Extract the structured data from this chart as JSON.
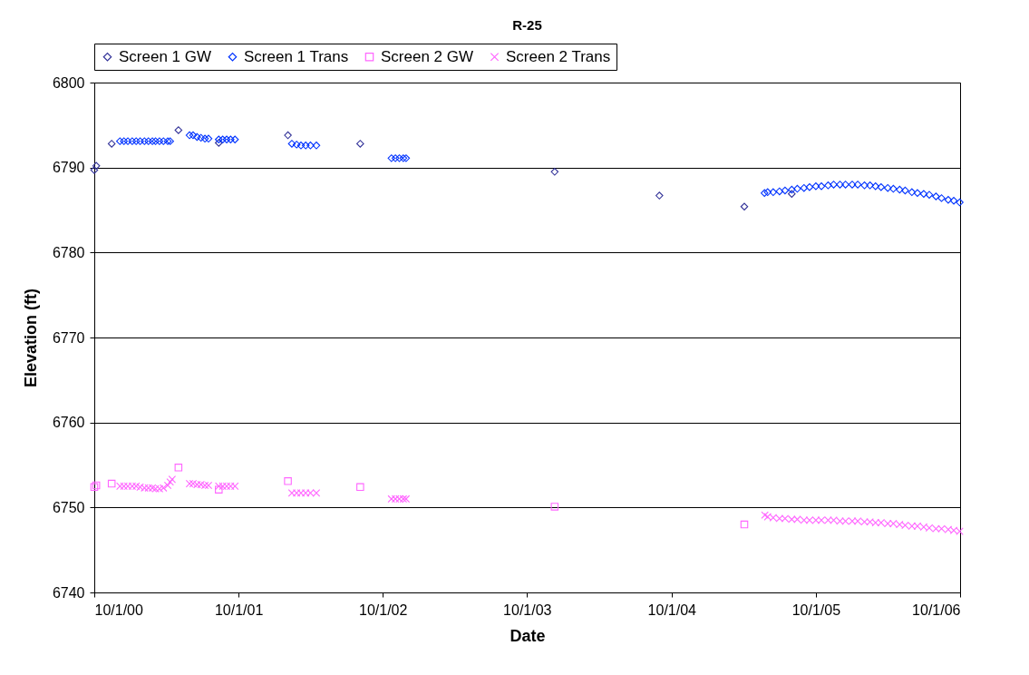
{
  "chart_data": {
    "type": "scatter",
    "title": "R-25",
    "xlabel": "Date",
    "ylabel": "Elevation (ft)",
    "xlim": [
      "2000-10-01",
      "2006-10-01"
    ],
    "xticks": [
      {
        "value": "2000-10-01",
        "label": "10/1/00"
      },
      {
        "value": "2001-10-01",
        "label": "10/1/01"
      },
      {
        "value": "2002-10-01",
        "label": "10/1/02"
      },
      {
        "value": "2003-10-01",
        "label": "10/1/03"
      },
      {
        "value": "2004-10-01",
        "label": "10/1/04"
      },
      {
        "value": "2005-10-01",
        "label": "10/1/05"
      },
      {
        "value": "2006-10-01",
        "label": "10/1/06"
      }
    ],
    "ylim": [
      6740,
      6800
    ],
    "yticks": [
      6740,
      6750,
      6760,
      6770,
      6780,
      6790,
      6800
    ],
    "grid": "y",
    "legend": "top",
    "series": [
      {
        "name": "Screen 1 GW",
        "color": "#333399",
        "marker": "diamond",
        "x": [
          "2000-10-01",
          "2000-10-06",
          "2000-11-14",
          "2001-05-02",
          "2001-08-12",
          "2002-02-03",
          "2002-08-05",
          "2003-12-10",
          "2004-08-31",
          "2005-04-03",
          "2005-08-01"
        ],
        "values": [
          6789.7,
          6790.2,
          6792.8,
          6794.4,
          6792.9,
          6793.8,
          6792.8,
          6789.5,
          6786.7,
          6785.4,
          6786.9
        ]
      },
      {
        "name": "Screen 1 Trans",
        "color": "#0033ff",
        "marker": "diamond",
        "x": [
          "2000-12-05",
          "2000-12-15",
          "2000-12-25",
          "2001-01-05",
          "2001-01-15",
          "2001-01-25",
          "2001-02-05",
          "2001-02-15",
          "2001-02-25",
          "2001-03-05",
          "2001-03-15",
          "2001-03-25",
          "2001-04-05",
          "2001-04-11",
          "2001-05-30",
          "2001-06-08",
          "2001-06-18",
          "2001-06-28",
          "2001-07-08",
          "2001-07-17",
          "2001-08-12",
          "2001-08-22",
          "2001-09-01",
          "2001-09-11",
          "2001-09-22",
          "2002-02-13",
          "2002-02-25",
          "2002-03-08",
          "2002-03-20",
          "2002-04-01",
          "2002-04-16",
          "2002-10-23",
          "2002-11-02",
          "2002-11-12",
          "2002-11-22",
          "2002-11-29",
          "2005-05-24",
          "2005-06-01",
          "2005-06-15",
          "2005-07-01",
          "2005-07-15",
          "2005-08-01",
          "2005-08-15",
          "2005-09-01",
          "2005-09-15",
          "2005-10-01",
          "2005-10-15",
          "2005-11-01",
          "2005-11-15",
          "2005-12-01",
          "2005-12-15",
          "2006-01-01",
          "2006-01-15",
          "2006-02-01",
          "2006-02-15",
          "2006-03-01",
          "2006-03-15",
          "2006-04-01",
          "2006-04-15",
          "2006-05-01",
          "2006-05-15",
          "2006-06-01",
          "2006-06-15",
          "2006-07-01",
          "2006-07-15",
          "2006-08-01",
          "2006-08-15",
          "2006-09-01",
          "2006-09-15",
          "2006-09-30"
        ],
        "values": [
          6793.1,
          6793.1,
          6793.1,
          6793.1,
          6793.1,
          6793.1,
          6793.1,
          6793.1,
          6793.1,
          6793.1,
          6793.1,
          6793.1,
          6793.1,
          6793.1,
          6793.8,
          6793.8,
          6793.6,
          6793.5,
          6793.4,
          6793.4,
          6793.3,
          6793.3,
          6793.3,
          6793.3,
          6793.3,
          6792.8,
          6792.7,
          6792.6,
          6792.6,
          6792.6,
          6792.6,
          6791.1,
          6791.1,
          6791.1,
          6791.1,
          6791.1,
          6787.0,
          6787.1,
          6787.1,
          6787.2,
          6787.3,
          6787.4,
          6787.5,
          6787.6,
          6787.7,
          6787.8,
          6787.8,
          6787.9,
          6788.0,
          6788.0,
          6788.0,
          6788.0,
          6788.0,
          6787.9,
          6787.9,
          6787.8,
          6787.7,
          6787.6,
          6787.5,
          6787.4,
          6787.3,
          6787.1,
          6787.0,
          6786.9,
          6786.8,
          6786.6,
          6786.4,
          6786.2,
          6786.1,
          6785.9
        ]
      },
      {
        "name": "Screen 2 GW",
        "color": "#ff66ff",
        "marker": "square",
        "x": [
          "2000-10-01",
          "2000-10-06",
          "2000-11-14",
          "2001-05-02",
          "2001-08-12",
          "2002-02-03",
          "2002-08-05",
          "2003-12-10",
          "2005-04-03"
        ],
        "values": [
          6752.4,
          6752.6,
          6752.8,
          6754.7,
          6752.1,
          6753.1,
          6752.4,
          6750.1,
          6748.0
        ]
      },
      {
        "name": "Screen 2 Trans",
        "color": "#ff66ff",
        "marker": "cross",
        "x": [
          "2000-12-05",
          "2000-12-15",
          "2000-12-25",
          "2001-01-05",
          "2001-01-15",
          "2001-01-25",
          "2001-02-05",
          "2001-02-15",
          "2001-02-25",
          "2001-03-05",
          "2001-03-15",
          "2001-03-25",
          "2001-04-05",
          "2001-04-11",
          "2001-04-16",
          "2001-05-30",
          "2001-06-08",
          "2001-06-18",
          "2001-06-28",
          "2001-07-08",
          "2001-07-17",
          "2001-08-12",
          "2001-08-22",
          "2001-09-01",
          "2001-09-11",
          "2001-09-22",
          "2002-02-13",
          "2002-02-25",
          "2002-03-08",
          "2002-03-20",
          "2002-04-01",
          "2002-04-16",
          "2002-10-23",
          "2002-11-02",
          "2002-11-12",
          "2002-11-22",
          "2002-11-29",
          "2005-05-25",
          "2005-06-01",
          "2005-06-15",
          "2005-07-01",
          "2005-07-15",
          "2005-08-01",
          "2005-08-15",
          "2005-09-01",
          "2005-09-15",
          "2005-10-01",
          "2005-10-15",
          "2005-11-01",
          "2005-11-15",
          "2005-12-01",
          "2005-12-15",
          "2006-01-01",
          "2006-01-15",
          "2006-02-01",
          "2006-02-15",
          "2006-03-01",
          "2006-03-15",
          "2006-04-01",
          "2006-04-15",
          "2006-05-01",
          "2006-05-15",
          "2006-06-01",
          "2006-06-15",
          "2006-07-01",
          "2006-07-15",
          "2006-08-01",
          "2006-08-15",
          "2006-09-01",
          "2006-09-15",
          "2006-09-30"
        ],
        "values": [
          6752.5,
          6752.5,
          6752.5,
          6752.5,
          6752.5,
          6752.4,
          6752.3,
          6752.3,
          6752.3,
          6752.2,
          6752.2,
          6752.3,
          6752.6,
          6753.0,
          6753.3,
          6752.8,
          6752.8,
          6752.7,
          6752.7,
          6752.6,
          6752.6,
          6752.5,
          6752.5,
          6752.5,
          6752.5,
          6752.5,
          6751.7,
          6751.7,
          6751.7,
          6751.7,
          6751.7,
          6751.7,
          6751.0,
          6751.0,
          6751.0,
          6751.0,
          6751.0,
          6749.1,
          6748.9,
          6748.8,
          6748.7,
          6748.7,
          6748.6,
          6748.6,
          6748.5,
          6748.5,
          6748.5,
          6748.5,
          6748.5,
          6748.5,
          6748.4,
          6748.4,
          6748.4,
          6748.4,
          6748.3,
          6748.3,
          6748.2,
          6748.2,
          6748.1,
          6748.1,
          6748.0,
          6747.9,
          6747.8,
          6747.8,
          6747.7,
          6747.6,
          6747.5,
          6747.5,
          6747.4,
          6747.3,
          6747.2
        ]
      }
    ]
  }
}
